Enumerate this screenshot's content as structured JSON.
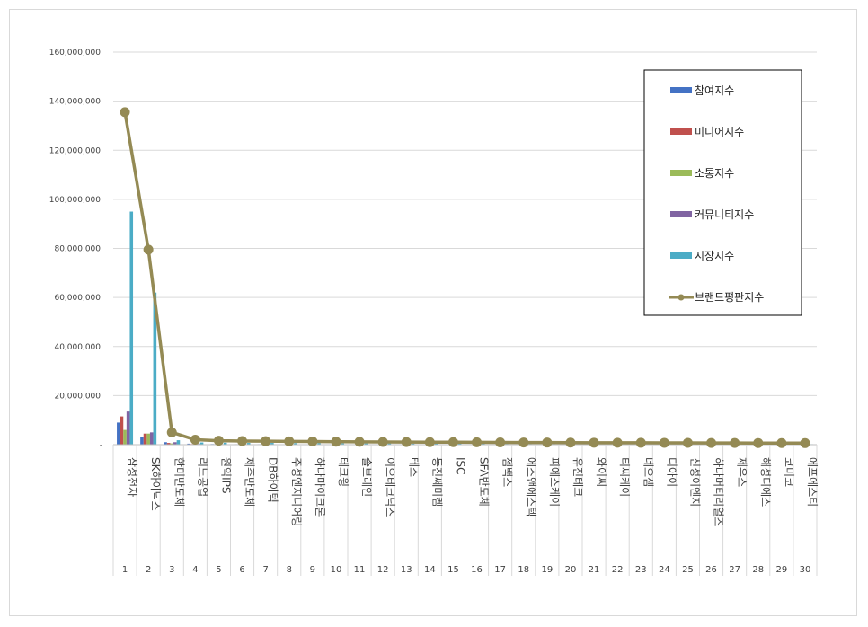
{
  "chart_data": {
    "type": "bar",
    "categories": [
      "삼성전자",
      "SK하이닉스",
      "한미반도체",
      "리노공업",
      "원익IPS",
      "제주반도체",
      "DB하이텍",
      "주성엔지니어링",
      "하나마이크론",
      "테크윙",
      "솔브레인",
      "이오테크닉스",
      "테스",
      "동진쎄미켐",
      "ISC",
      "SFA반도체",
      "젬백스",
      "에스앤에스텍",
      "피에스케이",
      "유진테크",
      "와이씨",
      "티씨케이",
      "네오셈",
      "디아이",
      "신성이엔지",
      "하나머티리얼즈",
      "제우스",
      "해성디에스",
      "코미코",
      "에프에스티"
    ],
    "ranks": [
      "1",
      "2",
      "3",
      "4",
      "5",
      "6",
      "7",
      "8",
      "9",
      "10",
      "11",
      "12",
      "13",
      "14",
      "15",
      "16",
      "17",
      "18",
      "19",
      "20",
      "21",
      "22",
      "23",
      "24",
      "25",
      "26",
      "27",
      "28",
      "29",
      "30"
    ],
    "yticks": [
      "-",
      "20,000,000",
      "40,000,000",
      "60,000,000",
      "80,000,000",
      "100,000,000",
      "120,000,000",
      "140,000,000",
      "160,000,000"
    ],
    "ylim": [
      0,
      160000000
    ],
    "grid": true,
    "legend_position": "top-right",
    "series": [
      {
        "name": "참여지수",
        "color": "#4472c4",
        "kind": "bar",
        "values": [
          9000000,
          3000000,
          1000000,
          400000,
          250000,
          200000,
          200000,
          150000,
          150000,
          120000,
          120000,
          110000,
          100000,
          100000,
          90000,
          90000,
          80000,
          80000,
          70000,
          70000,
          60000,
          60000,
          60000,
          50000,
          50000,
          50000,
          40000,
          40000,
          40000,
          30000
        ]
      },
      {
        "name": "미디어지수",
        "color": "#c0504d",
        "kind": "bar",
        "values": [
          11500000,
          4500000,
          700000,
          250000,
          200000,
          200000,
          180000,
          160000,
          150000,
          120000,
          110000,
          100000,
          100000,
          90000,
          90000,
          80000,
          80000,
          70000,
          70000,
          60000,
          60000,
          60000,
          50000,
          50000,
          50000,
          40000,
          40000,
          40000,
          30000,
          30000
        ]
      },
      {
        "name": "소통지수",
        "color": "#9bbb59",
        "kind": "bar",
        "values": [
          6000000,
          4500000,
          500000,
          200000,
          150000,
          150000,
          120000,
          110000,
          100000,
          90000,
          90000,
          80000,
          80000,
          70000,
          70000,
          60000,
          60000,
          60000,
          50000,
          50000,
          50000,
          40000,
          40000,
          40000,
          30000,
          30000,
          30000,
          30000,
          20000,
          20000
        ]
      },
      {
        "name": "커뮤니티지수",
        "color": "#8064a2",
        "kind": "bar",
        "values": [
          13500000,
          5000000,
          1000000,
          300000,
          200000,
          200000,
          180000,
          160000,
          150000,
          120000,
          110000,
          100000,
          100000,
          90000,
          90000,
          80000,
          80000,
          70000,
          70000,
          60000,
          60000,
          60000,
          50000,
          50000,
          50000,
          40000,
          40000,
          40000,
          30000,
          30000
        ]
      },
      {
        "name": "시장지수",
        "color": "#4bacc6",
        "kind": "bar",
        "values": [
          95000000,
          62000000,
          1800000,
          900000,
          800000,
          700000,
          700000,
          600000,
          600000,
          500000,
          500000,
          500000,
          400000,
          400000,
          400000,
          400000,
          300000,
          300000,
          300000,
          300000,
          300000,
          300000,
          250000,
          250000,
          250000,
          200000,
          200000,
          200000,
          200000,
          200000
        ]
      },
      {
        "name": "브랜드평판지수",
        "color": "#948a54",
        "kind": "line",
        "values": [
          135500000,
          79500000,
          5000000,
          2000000,
          1600000,
          1450000,
          1400000,
          1350000,
          1300000,
          1200000,
          1150000,
          1100000,
          1050000,
          1000000,
          1000000,
          950000,
          900000,
          880000,
          850000,
          820000,
          800000,
          780000,
          760000,
          740000,
          720000,
          700000,
          680000,
          660000,
          640000,
          620000
        ]
      }
    ]
  }
}
